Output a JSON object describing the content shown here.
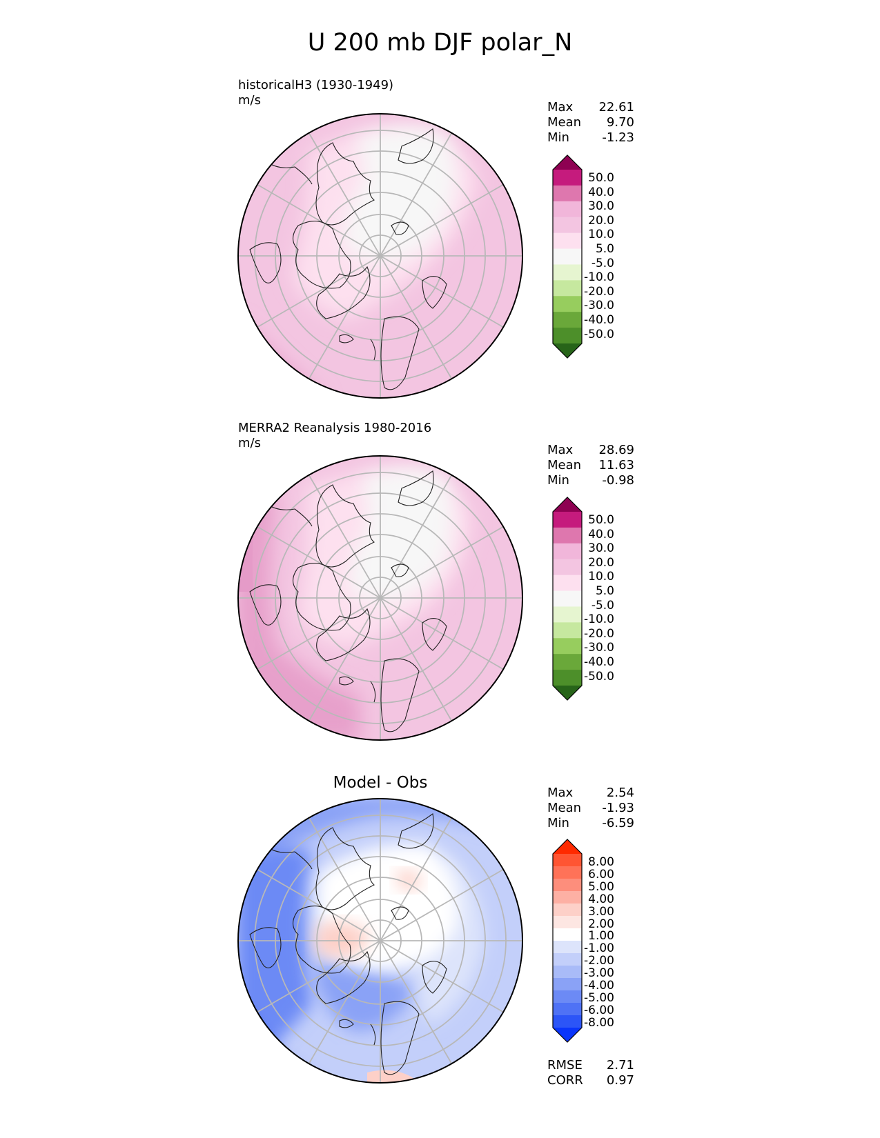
{
  "title": "U 200 mb DJF polar_N",
  "panels": [
    {
      "label_line1": "historicalH3 (1930-1949)",
      "label_line2": "m/s",
      "stats": [
        {
          "label": "Max",
          "value": "22.61"
        },
        {
          "label": "Mean",
          "value": "9.70"
        },
        {
          "label": "Min",
          "value": "-1.23"
        }
      ],
      "colorbar_ticks": [
        "50.0",
        "40.0",
        "30.0",
        "20.0",
        "10.0",
        "5.0",
        "-5.0",
        "-10.0",
        "-20.0",
        "-30.0",
        "-40.0",
        "-50.0"
      ],
      "colorbar_colors": [
        "#8e0152",
        "#c51b7d",
        "#de77ae",
        "#f1b6da",
        "#f3c5e1",
        "#fde0ef",
        "#f7f7f7",
        "#e6f5d0",
        "#c6e89f",
        "#97cd5e",
        "#6aa83a",
        "#4d8f2a",
        "#276419"
      ]
    },
    {
      "label_line1": "MERRA2 Reanalysis 1980-2016",
      "label_line2": "m/s",
      "stats": [
        {
          "label": "Max",
          "value": "28.69"
        },
        {
          "label": "Mean",
          "value": "11.63"
        },
        {
          "label": "Min",
          "value": "-0.98"
        }
      ],
      "colorbar_ticks": [
        "50.0",
        "40.0",
        "30.0",
        "20.0",
        "10.0",
        "5.0",
        "-5.0",
        "-10.0",
        "-20.0",
        "-30.0",
        "-40.0",
        "-50.0"
      ],
      "colorbar_colors": [
        "#8e0152",
        "#c51b7d",
        "#de77ae",
        "#f1b6da",
        "#f3c5e1",
        "#fde0ef",
        "#f7f7f7",
        "#e6f5d0",
        "#c6e89f",
        "#97cd5e",
        "#6aa83a",
        "#4d8f2a",
        "#276419"
      ]
    },
    {
      "title": "Model - Obs",
      "stats": [
        {
          "label": "Max",
          "value": "2.54"
        },
        {
          "label": "Mean",
          "value": "-1.93"
        },
        {
          "label": "Min",
          "value": "-6.59"
        }
      ],
      "colorbar_ticks": [
        "8.00",
        "6.00",
        "5.00",
        "4.00",
        "3.00",
        "2.00",
        "1.00",
        "-1.00",
        "-2.00",
        "-3.00",
        "-4.00",
        "-5.00",
        "-6.00",
        "-8.00"
      ],
      "colorbar_colors": [
        "#ff2a00",
        "#ff5533",
        "#ff7258",
        "#fd8e7c",
        "#fdb0a4",
        "#fdd0c8",
        "#fde6e2",
        "#ffffff",
        "#dde4fb",
        "#c3cffa",
        "#a9bbf8",
        "#8aa2f6",
        "#6c8af5",
        "#4f72f5",
        "#2c55f7",
        "#0a35fb"
      ],
      "footer": [
        {
          "label": "RMSE",
          "value": "2.71"
        },
        {
          "label": "CORR",
          "value": "0.97"
        }
      ]
    }
  ],
  "chart_data": [
    {
      "type": "heatmap",
      "projection": "polar_N",
      "variable": "U 200 mb DJF",
      "dataset": "historicalH3 (1930-1949)",
      "units": "m/s",
      "levels": [
        -50,
        -40,
        -30,
        -20,
        -10,
        -5,
        5,
        10,
        20,
        30,
        40,
        50
      ],
      "extend": "both",
      "stats": {
        "max": 22.61,
        "mean": 9.7,
        "min": -1.23
      }
    },
    {
      "type": "heatmap",
      "projection": "polar_N",
      "variable": "U 200 mb DJF",
      "dataset": "MERRA2 Reanalysis 1980-2016",
      "units": "m/s",
      "levels": [
        -50,
        -40,
        -30,
        -20,
        -10,
        -5,
        5,
        10,
        20,
        30,
        40,
        50
      ],
      "extend": "both",
      "stats": {
        "max": 28.69,
        "mean": 11.63,
        "min": -0.98
      }
    },
    {
      "type": "heatmap",
      "projection": "polar_N",
      "title": "Model - Obs",
      "levels": [
        -8,
        -6,
        -5,
        -4,
        -3,
        -2,
        -1,
        1,
        2,
        3,
        4,
        5,
        6,
        8
      ],
      "extend": "both",
      "stats": {
        "max": 2.54,
        "mean": -1.93,
        "min": -6.59
      },
      "rmse": 2.71,
      "corr": 0.97
    }
  ]
}
